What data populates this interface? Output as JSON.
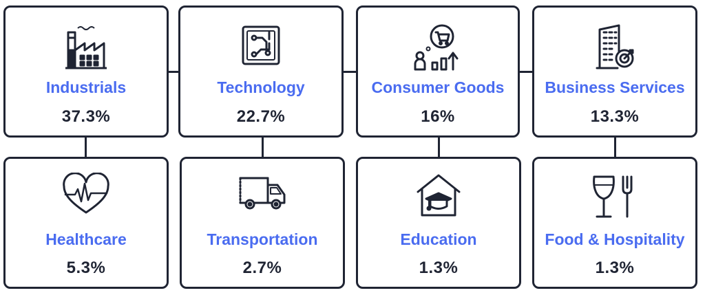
{
  "cards": [
    {
      "label": "Industrials",
      "value": "37.3%",
      "icon": "factory-icon"
    },
    {
      "label": "Technology",
      "value": "22.7%",
      "icon": "circuit-chip-icon"
    },
    {
      "label": "Consumer Goods",
      "value": "16%",
      "icon": "shopping-cart-growth-icon"
    },
    {
      "label": "Business Services",
      "value": "13.3%",
      "icon": "office-building-target-icon"
    },
    {
      "label": "Healthcare",
      "value": "5.3%",
      "icon": "heartbeat-icon"
    },
    {
      "label": "Transportation",
      "value": "2.7%",
      "icon": "delivery-truck-icon"
    },
    {
      "label": "Education",
      "value": "1.3%",
      "icon": "school-graduation-cap-icon"
    },
    {
      "label": "Food & Hospitality",
      "value": "1.3%",
      "icon": "wine-glass-fork-icon"
    }
  ],
  "colors": {
    "accent": "#4a6cf0",
    "ink": "#1f2433",
    "background": "#ffffff"
  }
}
